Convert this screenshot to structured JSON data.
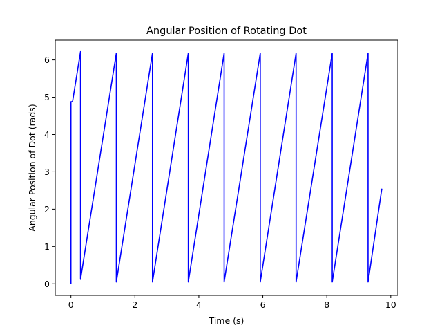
{
  "chart_data": {
    "type": "line",
    "title": "Angular Position of Rotating Dot",
    "xlabel": "Time (s)",
    "ylabel": "Angular Position of Dot (rads)",
    "xlim": [
      -0.49,
      10.22
    ],
    "ylim": [
      -0.31,
      6.53
    ],
    "xticks": [
      0,
      2,
      4,
      6,
      8,
      10
    ],
    "yticks": [
      0,
      1,
      2,
      3,
      4,
      5,
      6
    ],
    "xtick_labels": [
      "0",
      "2",
      "4",
      "6",
      "8",
      "10"
    ],
    "ytick_labels": [
      "0",
      "1",
      "2",
      "3",
      "4",
      "5",
      "6"
    ],
    "grid": false,
    "legend": "none",
    "series": [
      {
        "color": "#0000ff",
        "x": [
          0.0,
          0.0,
          0.05,
          0.3,
          0.3,
          1.42,
          1.42,
          2.55,
          2.55,
          3.67,
          3.67,
          4.79,
          4.79,
          5.92,
          5.92,
          7.04,
          7.04,
          8.17,
          8.17,
          9.29,
          9.29,
          9.72
        ],
        "y": [
          0.0,
          4.88,
          4.88,
          6.22,
          0.12,
          6.18,
          0.05,
          6.18,
          0.05,
          6.18,
          0.05,
          6.18,
          0.05,
          6.18,
          0.05,
          6.18,
          0.05,
          6.18,
          0.05,
          6.18,
          0.05,
          2.55
        ]
      }
    ]
  }
}
